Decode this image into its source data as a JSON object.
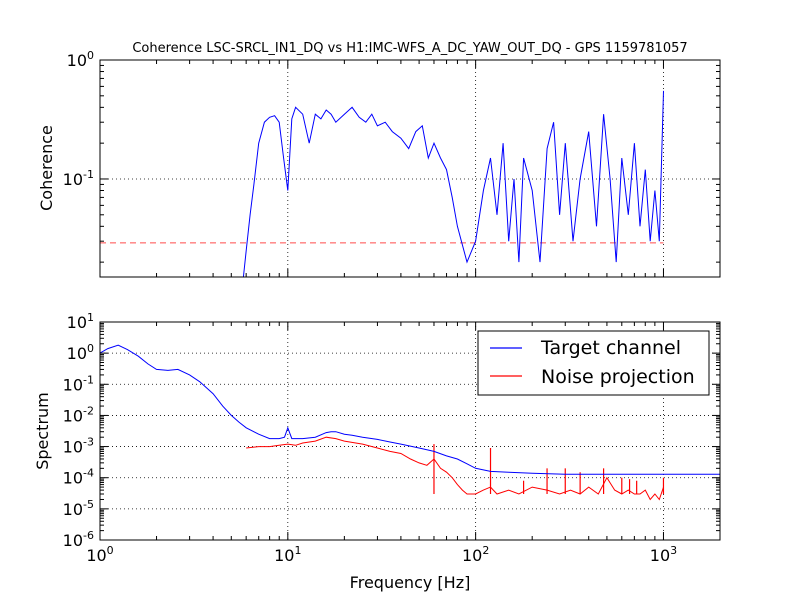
{
  "chart_data": [
    {
      "type": "line",
      "title": "Coherence LSC-SRCL_IN1_DQ vs H1:IMC-WFS_A_DC_YAW_OUT_DQ - GPS 1159781057",
      "xlabel": "",
      "ylabel": "Coherence",
      "xscale": "log",
      "yscale": "log",
      "xlim": [
        1,
        2000
      ],
      "ylim": [
        0.015,
        1
      ],
      "ytick_labels": [
        "10^-1",
        "10^0"
      ],
      "grid": true,
      "color": "#0000ff",
      "threshold": {
        "value": 0.029,
        "color": "#ff0000",
        "style": "dashed",
        "x_range": [
          1,
          1000
        ]
      },
      "series": [
        {
          "x": [
            5.8,
            6.0,
            6.3,
            6.6,
            7.0,
            7.5,
            8.0,
            8.5,
            9.0,
            9.5,
            10.0,
            10.5,
            11.0,
            12,
            13,
            14,
            15,
            16,
            17,
            18,
            20,
            22,
            24,
            26,
            28,
            30,
            33,
            36,
            40,
            44,
            48,
            52,
            56,
            60,
            65,
            70,
            75,
            80,
            90,
            100,
            110,
            120,
            130,
            140,
            150,
            160,
            170,
            180,
            200,
            220,
            240,
            260,
            280,
            300,
            330,
            360,
            400,
            440,
            480,
            520,
            560,
            600,
            650,
            700,
            750,
            800,
            850,
            900,
            950,
            1000
          ],
          "y": [
            0.015,
            0.025,
            0.05,
            0.09,
            0.2,
            0.3,
            0.33,
            0.34,
            0.3,
            0.15,
            0.08,
            0.32,
            0.4,
            0.35,
            0.2,
            0.35,
            0.32,
            0.38,
            0.35,
            0.3,
            0.35,
            0.4,
            0.33,
            0.3,
            0.35,
            0.28,
            0.3,
            0.25,
            0.22,
            0.18,
            0.25,
            0.28,
            0.15,
            0.2,
            0.15,
            0.12,
            0.07,
            0.04,
            0.02,
            0.03,
            0.08,
            0.15,
            0.05,
            0.2,
            0.03,
            0.1,
            0.02,
            0.15,
            0.08,
            0.02,
            0.18,
            0.3,
            0.05,
            0.2,
            0.03,
            0.1,
            0.25,
            0.04,
            0.35,
            0.1,
            0.02,
            0.15,
            0.05,
            0.2,
            0.04,
            0.12,
            0.03,
            0.08,
            0.03,
            0.55
          ]
        }
      ]
    },
    {
      "type": "line",
      "title": "",
      "xlabel": "Frequency [Hz]",
      "ylabel": "Spectrum",
      "xscale": "log",
      "yscale": "log",
      "xlim": [
        1,
        2000
      ],
      "ylim": [
        1e-06,
        10
      ],
      "xtick_labels": [
        "10^0",
        "10^1",
        "10^2",
        "10^3"
      ],
      "ytick_labels": [
        "10^-6",
        "10^-5",
        "10^-4",
        "10^-3",
        "10^-2",
        "10^-1",
        "10^0",
        "10^1"
      ],
      "grid": true,
      "legend": "top-right",
      "series": [
        {
          "name": "Target channel",
          "color": "#0000ff",
          "x": [
            1.0,
            1.1,
            1.25,
            1.4,
            1.6,
            1.8,
            2.0,
            2.3,
            2.6,
            3.0,
            3.4,
            4.0,
            4.5,
            5.0,
            5.5,
            6.0,
            7.0,
            8.0,
            9.0,
            9.6,
            10.0,
            10.5,
            12,
            14,
            16,
            17,
            18,
            20,
            22,
            25,
            30,
            35,
            40,
            50,
            60,
            70,
            80,
            90,
            100,
            120,
            150,
            200,
            300,
            500,
            700,
            1000,
            1500,
            2000
          ],
          "y": [
            1.0,
            1.4,
            1.8,
            1.3,
            0.8,
            0.45,
            0.3,
            0.28,
            0.3,
            0.2,
            0.12,
            0.05,
            0.02,
            0.01,
            0.006,
            0.004,
            0.0025,
            0.0018,
            0.0018,
            0.002,
            0.004,
            0.0018,
            0.0018,
            0.002,
            0.0028,
            0.003,
            0.003,
            0.0025,
            0.0023,
            0.002,
            0.0017,
            0.0014,
            0.0012,
            0.0009,
            0.0007,
            0.0005,
            0.0004,
            0.00028,
            0.0002,
            0.00016,
            0.00015,
            0.00014,
            0.00013,
            0.00013,
            0.00013,
            0.00013,
            0.00013,
            0.00013
          ]
        },
        {
          "name": "Noise projection",
          "color": "#ff0000",
          "x": [
            6.0,
            7.0,
            8.0,
            9.0,
            10.0,
            11,
            12,
            14,
            16,
            18,
            20,
            25,
            30,
            35,
            40,
            45,
            50,
            55,
            60,
            65,
            70,
            75,
            80,
            85,
            90,
            100,
            110,
            120,
            130,
            150,
            170,
            200,
            240,
            280,
            320,
            360,
            400,
            450,
            500,
            550,
            600,
            650,
            700,
            750,
            800,
            850,
            900,
            950,
            1000
          ],
          "y": [
            0.0009,
            0.001,
            0.001,
            0.0011,
            0.0012,
            0.0011,
            0.0013,
            0.0015,
            0.002,
            0.0018,
            0.0015,
            0.0012,
            0.0009,
            0.0007,
            0.0006,
            0.0004,
            0.0003,
            0.00025,
            0.0004,
            0.0002,
            0.00015,
            0.0001,
            6e-05,
            4e-05,
            3e-05,
            3e-05,
            4e-05,
            5e-05,
            3e-05,
            4e-05,
            3e-05,
            5e-05,
            4e-05,
            3e-05,
            4e-05,
            3e-05,
            5e-05,
            3e-05,
            0.0001,
            4e-05,
            3e-05,
            4e-05,
            3e-05,
            3e-05,
            4e-05,
            2e-05,
            3e-05,
            2e-05,
            5e-05
          ]
        }
      ],
      "peaks": {
        "color": "#ff0000",
        "x": [
          60,
          120,
          180,
          240,
          300,
          360,
          480,
          600,
          660,
          720,
          1000
        ],
        "y": [
          0.0012,
          0.0009,
          8e-05,
          0.0002,
          0.0002,
          0.00015,
          0.0002,
          0.0001,
          9e-05,
          8e-05,
          0.0001
        ]
      }
    }
  ]
}
